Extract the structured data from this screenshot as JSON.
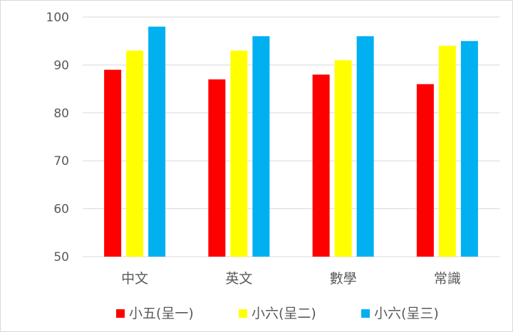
{
  "chart_data": {
    "type": "bar",
    "categories": [
      "中文",
      "英文",
      "數學",
      "常識"
    ],
    "series": [
      {
        "name": "小五(呈一)",
        "color": "#ff0000",
        "values": [
          89,
          87,
          88,
          86
        ]
      },
      {
        "name": "小六(呈二)",
        "color": "#ffff00",
        "values": [
          93,
          93,
          91,
          94
        ]
      },
      {
        "name": "小六(呈三)",
        "color": "#00b0f0",
        "values": [
          98,
          96,
          96,
          95
        ]
      }
    ],
    "yticks": [
      "50",
      "60",
      "70",
      "80",
      "90",
      "100"
    ],
    "ylim": [
      50,
      100
    ],
    "grid": true,
    "legend_position": "bottom",
    "gridline_color": "#d9d9d9"
  }
}
